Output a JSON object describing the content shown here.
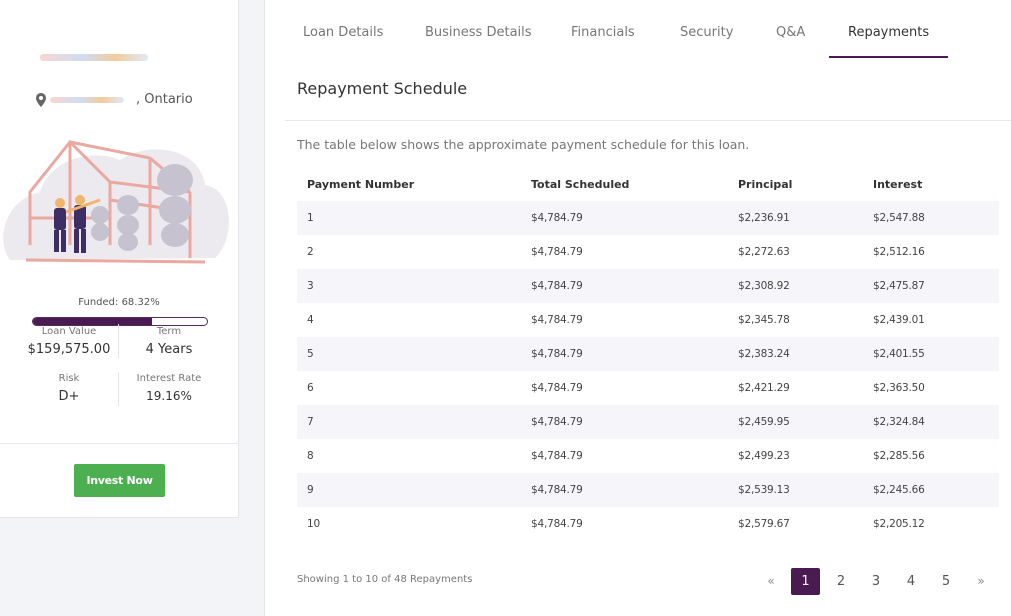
{
  "project": {
    "location_suffix": ", Ontario",
    "funded_label": "Funded: 68.32%",
    "funded_fraction": 0.6832,
    "stats": {
      "loan_value_label": "Loan Value",
      "loan_value": "$159,575.00",
      "term_label": "Term",
      "term": "4 Years",
      "risk_label": "Risk",
      "risk": "D+",
      "interest_rate_label": "Interest Rate",
      "interest_rate": "19.16%"
    },
    "invest_label": "Invest Now",
    "colors": {
      "brand": "#4a1a52",
      "invest": "#4caf50"
    }
  },
  "tabs": [
    "Loan Details",
    "Business Details",
    "Financials",
    "Security",
    "Q&A",
    "Repayments"
  ],
  "active_tab": "Repayments",
  "schedule": {
    "title": "Repayment Schedule",
    "intro": "The table below shows the approximate payment schedule for this loan.",
    "columns": [
      "Payment Number",
      "Total Scheduled",
      "Principal",
      "Interest"
    ],
    "rows": [
      [
        "1",
        "$4,784.79",
        "$2,236.91",
        "$2,547.88"
      ],
      [
        "2",
        "$4,784.79",
        "$2,272.63",
        "$2,512.16"
      ],
      [
        "3",
        "$4,784.79",
        "$2,308.92",
        "$2,475.87"
      ],
      [
        "4",
        "$4,784.79",
        "$2,345.78",
        "$2,439.01"
      ],
      [
        "5",
        "$4,784.79",
        "$2,383.24",
        "$2,401.55"
      ],
      [
        "6",
        "$4,784.79",
        "$2,421.29",
        "$2,363.50"
      ],
      [
        "7",
        "$4,784.79",
        "$2,459.95",
        "$2,324.84"
      ],
      [
        "8",
        "$4,784.79",
        "$2,499.23",
        "$2,285.56"
      ],
      [
        "9",
        "$4,784.79",
        "$2,539.13",
        "$2,245.66"
      ],
      [
        "10",
        "$4,784.79",
        "$2,579.67",
        "$2,205.12"
      ]
    ],
    "showing_text": "Showing 1 to 10 of 48 Repayments"
  },
  "pagination": {
    "prev": "«",
    "pages": [
      "1",
      "2",
      "3",
      "4",
      "5"
    ],
    "current": "1",
    "next": "»"
  }
}
